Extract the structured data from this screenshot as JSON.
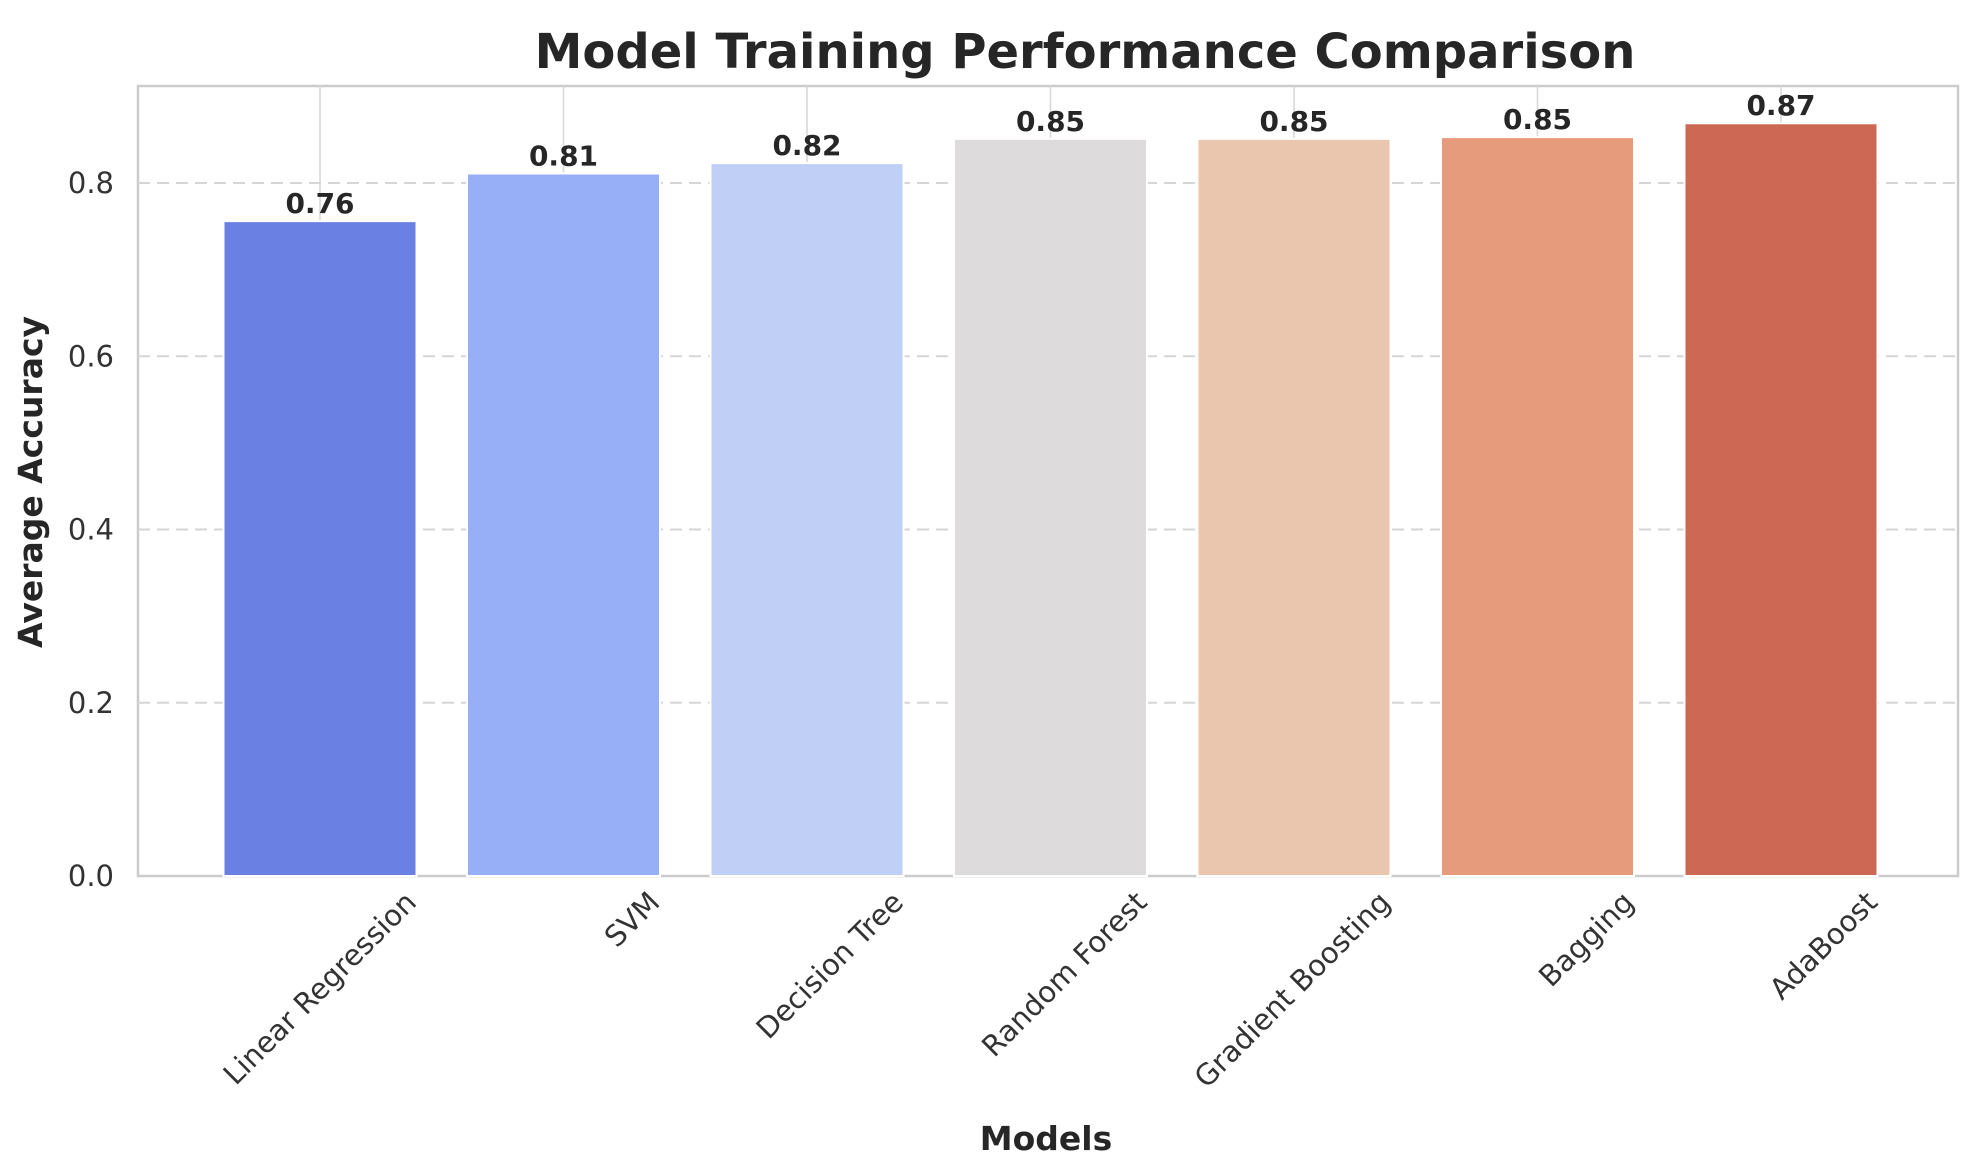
{
  "chart_data": {
    "type": "bar",
    "title": "Model Training Performance Comparison",
    "xlabel": "Models",
    "ylabel": "Average Accuracy",
    "categories": [
      "Linear Regression",
      "SVM",
      "Decision Tree",
      "Random Forest",
      "Gradient Boosting",
      "Bagging",
      "AdaBoost"
    ],
    "values": [
      0.756,
      0.811,
      0.823,
      0.851,
      0.851,
      0.853,
      0.869
    ],
    "value_labels": [
      "0.76",
      "0.81",
      "0.82",
      "0.85",
      "0.85",
      "0.85",
      "0.87"
    ],
    "colors": [
      "#6a80e3",
      "#96aff7",
      "#bfcff5",
      "#dddbdb",
      "#ebc6ae",
      "#e79b7d",
      "#cc6853"
    ],
    "ylim": [
      0,
      0.912
    ],
    "yticks": [
      0.0,
      0.2,
      0.4,
      0.6,
      0.8
    ],
    "ytick_labels": [
      "0.0",
      "0.2",
      "0.4",
      "0.6",
      "0.8"
    ],
    "grid": true,
    "legend": false
  }
}
